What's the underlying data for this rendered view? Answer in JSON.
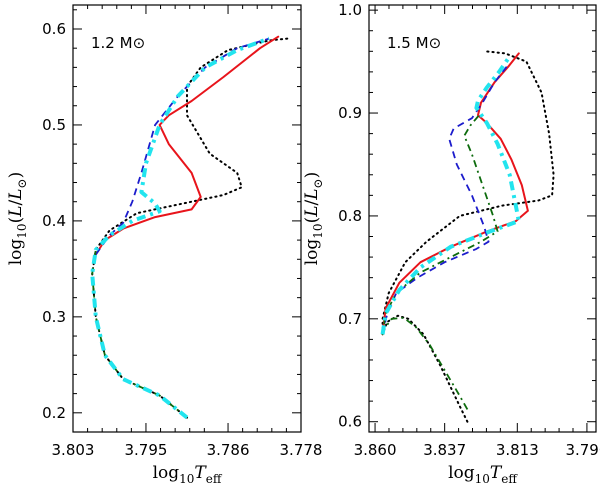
{
  "chart_data": [
    {
      "type": "line",
      "panel_label": "1.2 M⊙",
      "xlabel": "log10Teff",
      "ylabel": "log10(L/L⊙)",
      "xlim": [
        3.803,
        3.778
      ],
      "ylim": [
        0.18,
        0.625
      ],
      "x_ticks": [
        "3.803",
        "3.795",
        "3.786",
        "3.778"
      ],
      "y_ticks": [
        "0.2",
        "0.3",
        "0.4",
        "0.5",
        "0.6"
      ],
      "grid": false,
      "series": [
        {
          "style": "dotted",
          "color": "#000000",
          "points": [
            [
              3.7905,
              0.195
            ],
            [
              3.7935,
              0.218
            ],
            [
              3.7975,
              0.235
            ],
            [
              3.7995,
              0.26
            ],
            [
              3.8005,
              0.3
            ],
            [
              3.8009,
              0.345
            ],
            [
              3.8005,
              0.37
            ],
            [
              3.799,
              0.39
            ],
            [
              3.796,
              0.408
            ],
            [
              3.79,
              0.42
            ],
            [
              3.7865,
              0.427
            ],
            [
              3.7845,
              0.435
            ],
            [
              3.785,
              0.45
            ],
            [
              3.788,
              0.47
            ],
            [
              3.7905,
              0.51
            ],
            [
              3.7905,
              0.54
            ],
            [
              3.789,
              0.56
            ],
            [
              3.786,
              0.578
            ],
            [
              3.7815,
              0.588
            ],
            [
              3.7795,
              0.59
            ]
          ]
        },
        {
          "style": "solid",
          "color": "#e8141b",
          "points": [
            [
              3.8005,
              0.365
            ],
            [
              3.7995,
              0.38
            ],
            [
              3.7975,
              0.392
            ],
            [
              3.794,
              0.404
            ],
            [
              3.79,
              0.412
            ],
            [
              3.789,
              0.425
            ],
            [
              3.79,
              0.45
            ],
            [
              3.7925,
              0.48
            ],
            [
              3.7935,
              0.5
            ],
            [
              3.7925,
              0.51
            ],
            [
              3.79,
              0.525
            ],
            [
              3.7865,
              0.55
            ],
            [
              3.7825,
              0.58
            ],
            [
              3.7805,
              0.592
            ]
          ]
        },
        {
          "style": "dashed",
          "color": "#1c1ccc",
          "points": [
            [
              3.8005,
              0.365
            ],
            [
              3.799,
              0.385
            ],
            [
              3.7975,
              0.398
            ],
            [
              3.7965,
              0.42
            ],
            [
              3.7955,
              0.45
            ],
            [
              3.794,
              0.5
            ],
            [
              3.7915,
              0.53
            ],
            [
              3.7885,
              0.56
            ],
            [
              3.785,
              0.58
            ],
            [
              3.7815,
              0.59
            ]
          ]
        },
        {
          "style": "dash-dot",
          "color": "#0d6b0d",
          "points": [
            [
              3.7905,
              0.195
            ],
            [
              3.7935,
              0.218
            ],
            [
              3.7975,
              0.235
            ],
            [
              3.7995,
              0.26
            ],
            [
              3.8005,
              0.3
            ],
            [
              3.8009,
              0.345
            ],
            [
              3.8005,
              0.37
            ]
          ]
        },
        {
          "style": "dash-dot-thick",
          "color": "#22e4ee",
          "points": [
            [
              3.7905,
              0.195
            ],
            [
              3.7935,
              0.218
            ],
            [
              3.7975,
              0.235
            ],
            [
              3.7995,
              0.26
            ],
            [
              3.8005,
              0.3
            ],
            [
              3.8009,
              0.345
            ],
            [
              3.8005,
              0.37
            ],
            [
              3.799,
              0.385
            ],
            [
              3.7965,
              0.4
            ],
            [
              3.7935,
              0.41
            ],
            [
              3.794,
              0.418
            ],
            [
              3.7955,
              0.43
            ],
            [
              3.795,
              0.46
            ],
            [
              3.7935,
              0.5
            ],
            [
              3.7915,
              0.53
            ],
            [
              3.7885,
              0.56
            ],
            [
              3.785,
              0.578
            ],
            [
              3.7815,
              0.59
            ]
          ]
        }
      ]
    },
    {
      "type": "line",
      "panel_label": "1.5 M⊙",
      "xlabel": "log10Teff",
      "ylabel": "log10(L/L⊙)",
      "xlim": [
        3.862,
        3.787
      ],
      "ylim": [
        0.59,
        1.005
      ],
      "x_ticks": [
        "3.860",
        "3.837",
        "3.813",
        "3.790"
      ],
      "y_ticks": [
        "0.6",
        "0.7",
        "0.8",
        "0.9",
        "1.0"
      ],
      "grid": false,
      "series": [
        {
          "style": "dotted",
          "color": "#000000",
          "points": [
            [
              3.8295,
              0.6
            ],
            [
              3.832,
              0.615
            ],
            [
              3.8385,
              0.655
            ],
            [
              3.844,
              0.685
            ],
            [
              3.849,
              0.7
            ],
            [
              3.8525,
              0.703
            ],
            [
              3.856,
              0.697
            ],
            [
              3.8575,
              0.685
            ],
            [
              3.8575,
              0.7
            ],
            [
              3.8555,
              0.725
            ],
            [
              3.85,
              0.755
            ],
            [
              3.843,
              0.775
            ],
            [
              3.832,
              0.8
            ],
            [
              3.818,
              0.81
            ],
            [
              3.806,
              0.815
            ],
            [
              3.8015,
              0.82
            ],
            [
              3.801,
              0.84
            ],
            [
              3.8025,
              0.88
            ],
            [
              3.805,
              0.92
            ],
            [
              3.81,
              0.95
            ],
            [
              3.817,
              0.958
            ],
            [
              3.8235,
              0.96
            ]
          ]
        },
        {
          "style": "solid",
          "color": "#e8141b",
          "points": [
            [
              3.8575,
              0.685
            ],
            [
              3.8565,
              0.71
            ],
            [
              3.852,
              0.735
            ],
            [
              3.845,
              0.755
            ],
            [
              3.835,
              0.77
            ],
            [
              3.823,
              0.785
            ],
            [
              3.8135,
              0.795
            ],
            [
              3.8095,
              0.805
            ],
            [
              3.8115,
              0.83
            ],
            [
              3.815,
              0.855
            ],
            [
              3.8185,
              0.875
            ],
            [
              3.823,
              0.89
            ],
            [
              3.826,
              0.898
            ],
            [
              3.825,
              0.91
            ],
            [
              3.8205,
              0.93
            ],
            [
              3.816,
              0.945
            ],
            [
              3.8125,
              0.958
            ]
          ]
        },
        {
          "style": "dashed",
          "color": "#1c1ccc",
          "points": [
            [
              3.8575,
              0.685
            ],
            [
              3.856,
              0.705
            ],
            [
              3.853,
              0.725
            ],
            [
              3.846,
              0.74
            ],
            [
              3.837,
              0.755
            ],
            [
              3.8265,
              0.768
            ],
            [
              3.8225,
              0.775
            ],
            [
              3.824,
              0.79
            ],
            [
              3.828,
              0.82
            ],
            [
              3.833,
              0.85
            ],
            [
              3.8355,
              0.875
            ],
            [
              3.834,
              0.885
            ],
            [
              3.828,
              0.895
            ],
            [
              3.8245,
              0.91
            ],
            [
              3.8205,
              0.93
            ],
            [
              3.8165,
              0.945
            ]
          ]
        },
        {
          "style": "dash-dot",
          "color": "#0d6b0d",
          "points": [
            [
              3.8295,
              0.612
            ],
            [
              3.832,
              0.625
            ],
            [
              3.837,
              0.65
            ],
            [
              3.842,
              0.675
            ],
            [
              3.8465,
              0.692
            ],
            [
              3.8505,
              0.701
            ],
            [
              3.8545,
              0.7
            ],
            [
              3.857,
              0.69
            ],
            [
              3.8575,
              0.685
            ],
            [
              3.8565,
              0.705
            ],
            [
              3.853,
              0.725
            ],
            [
              3.845,
              0.745
            ],
            [
              3.835,
              0.76
            ],
            [
              3.825,
              0.775
            ],
            [
              3.8195,
              0.785
            ],
            [
              3.821,
              0.8
            ],
            [
              3.8245,
              0.83
            ],
            [
              3.828,
              0.86
            ],
            [
              3.8305,
              0.878
            ],
            [
              3.8285,
              0.888
            ],
            [
              3.825,
              0.9
            ]
          ]
        },
        {
          "style": "dash-dot-thick",
          "color": "#22e4ee",
          "points": [
            [
              3.8575,
              0.685
            ],
            [
              3.8565,
              0.705
            ],
            [
              3.852,
              0.728
            ],
            [
              3.845,
              0.75
            ],
            [
              3.835,
              0.77
            ],
            [
              3.822,
              0.785
            ],
            [
              3.8125,
              0.795
            ],
            [
              3.8135,
              0.81
            ],
            [
              3.8155,
              0.84
            ],
            [
              3.8195,
              0.87
            ],
            [
              3.823,
              0.89
            ],
            [
              3.8265,
              0.905
            ],
            [
              3.826,
              0.912
            ],
            [
              3.823,
              0.925
            ],
            [
              3.819,
              0.94
            ],
            [
              3.8155,
              0.955
            ]
          ]
        }
      ]
    }
  ]
}
